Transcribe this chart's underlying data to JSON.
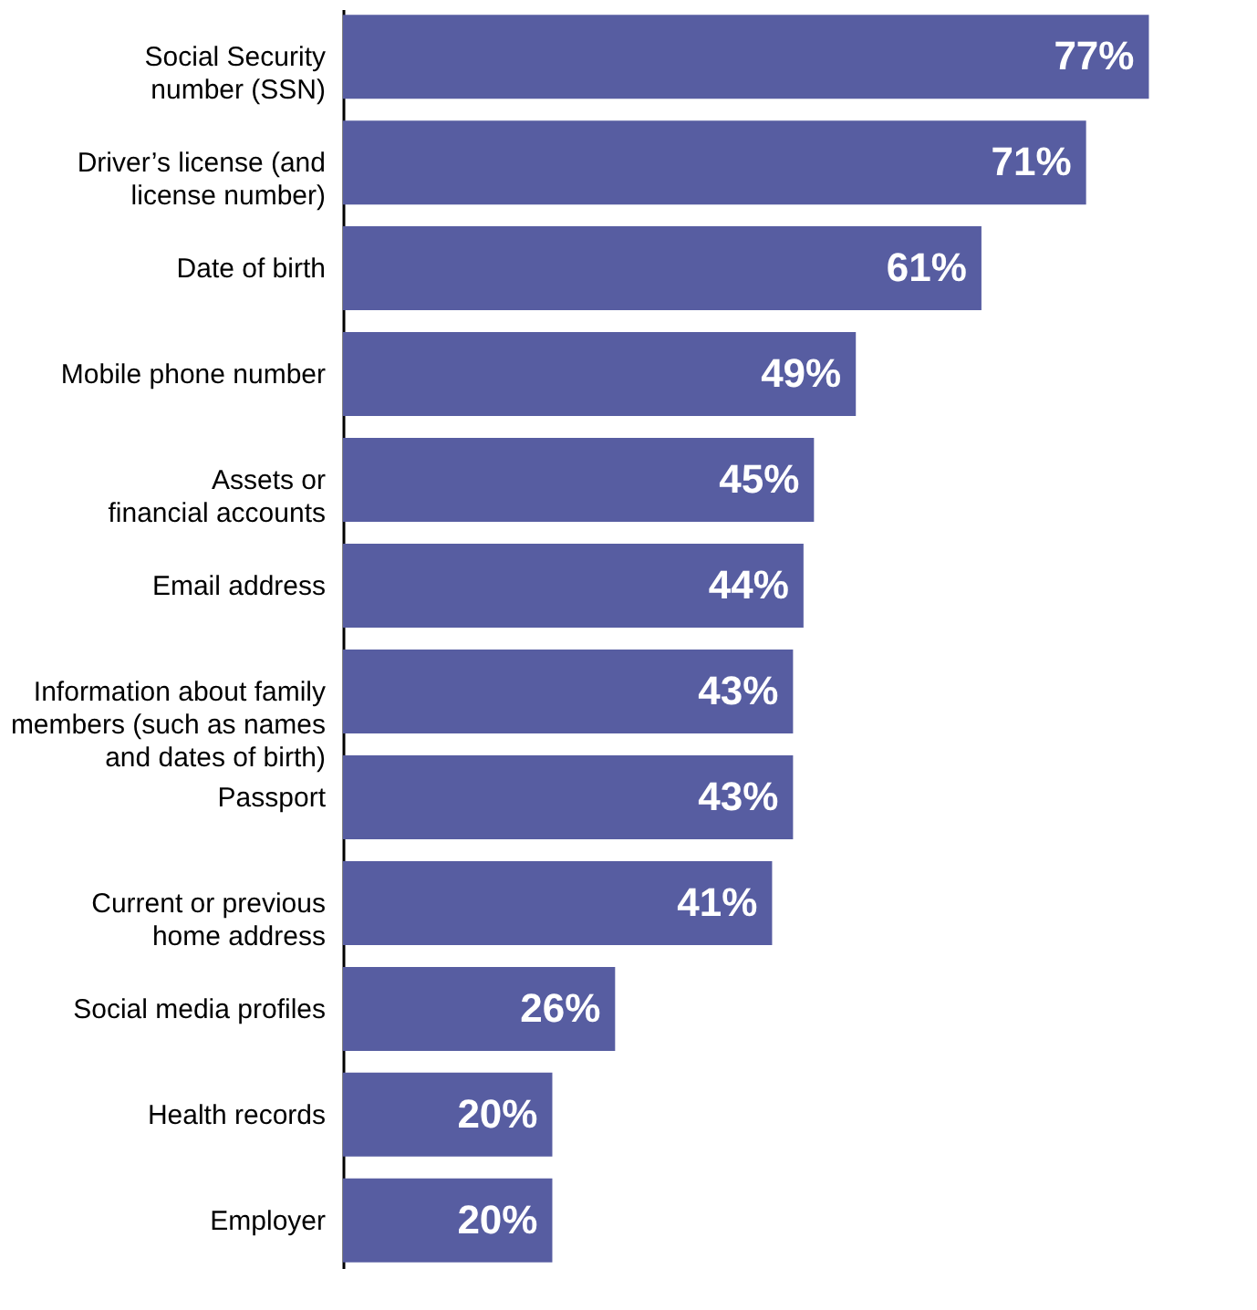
{
  "chart_data": {
    "type": "bar",
    "orientation": "horizontal",
    "categories": [
      "Social Security\nnumber (SSN)",
      "Driver’s license (and\nlicense number)",
      "Date of birth",
      "Mobile phone number",
      "Assets or\nfinancial accounts",
      "Email address",
      "Information about family\nmembers (such as names\nand dates of birth)",
      "Passport",
      "Current or previous\nhome address",
      "Social media profiles",
      "Health records",
      "Employer"
    ],
    "values": [
      77,
      71,
      61,
      49,
      45,
      44,
      43,
      43,
      41,
      26,
      20,
      20
    ],
    "value_labels": [
      "77%",
      "71%",
      "61%",
      "49%",
      "45%",
      "44%",
      "43%",
      "43%",
      "41%",
      "26%",
      "20%",
      "20%"
    ],
    "color": "#575da1"
  }
}
